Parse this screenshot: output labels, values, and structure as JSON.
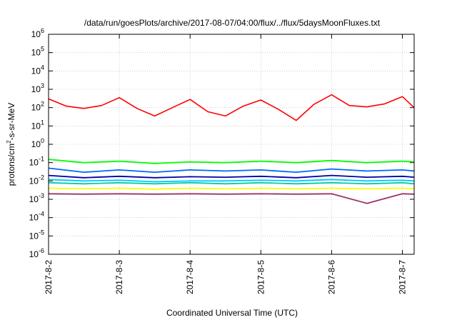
{
  "chart_data": {
    "type": "line",
    "title": "/data/run/goesPlots/archive/2017-08-07/04:00/flux/../flux/5daysMoonFluxes.txt",
    "xlabel": "Coordinated Universal Time (UTC)",
    "ylabel_main": "protons/cm",
    "ylabel_sup": "2",
    "ylabel_tail": "-s-sr-MeV",
    "yscale": "log",
    "ylim": [
      1e-06,
      1000000.0
    ],
    "xlim": [
      "2017-08-02 00:00",
      "2017-08-07 04:00"
    ],
    "grid": true,
    "ytick_labels": [
      {
        "exp": "-6"
      },
      {
        "exp": "-5"
      },
      {
        "exp": "-4"
      },
      {
        "exp": "-3"
      },
      {
        "exp": "-2"
      },
      {
        "exp": "-1"
      },
      {
        "exp": "0"
      },
      {
        "exp": "1"
      },
      {
        "exp": "2"
      },
      {
        "exp": "3"
      },
      {
        "exp": "4"
      },
      {
        "exp": "5"
      },
      {
        "exp": "6"
      }
    ],
    "ytick_base": "10",
    "xtick_labels": [
      "2017-8-2",
      "2017-8-3",
      "2017-8-4",
      "2017-8-5",
      "2017-8-6",
      "2017-8-7"
    ],
    "series": [
      {
        "color": "#ff0000",
        "x": [
          "2017-08-02 00:00",
          "2017-08-02 06:00",
          "2017-08-02 12:00",
          "2017-08-02 18:00",
          "2017-08-03 00:00",
          "2017-08-03 06:00",
          "2017-08-03 12:00",
          "2017-08-03 18:00",
          "2017-08-04 00:00",
          "2017-08-04 06:00",
          "2017-08-04 12:00",
          "2017-08-04 18:00",
          "2017-08-05 00:00",
          "2017-08-05 06:00",
          "2017-08-05 12:00",
          "2017-08-05 18:00",
          "2017-08-06 00:00",
          "2017-08-06 06:00",
          "2017-08-06 12:00",
          "2017-08-06 18:00",
          "2017-08-07 00:00",
          "2017-08-07 04:00"
        ],
        "values": [
          300,
          120,
          90,
          130,
          350,
          90,
          35,
          100,
          280,
          60,
          35,
          120,
          260,
          80,
          20,
          150,
          500,
          130,
          110,
          160,
          400,
          100
        ]
      },
      {
        "color": "#00ff00",
        "x": [
          "2017-08-02 00:00",
          "2017-08-02 12:00",
          "2017-08-03 00:00",
          "2017-08-03 12:00",
          "2017-08-04 00:00",
          "2017-08-04 12:00",
          "2017-08-05 00:00",
          "2017-08-05 12:00",
          "2017-08-06 00:00",
          "2017-08-06 12:00",
          "2017-08-07 00:00",
          "2017-08-07 04:00"
        ],
        "values": [
          0.15,
          0.1,
          0.12,
          0.09,
          0.11,
          0.1,
          0.12,
          0.1,
          0.13,
          0.1,
          0.12,
          0.11
        ]
      },
      {
        "color": "#00ccff",
        "x": [
          "2017-08-02 00:00",
          "2017-08-02 12:00",
          "2017-08-03 00:00",
          "2017-08-03 12:00",
          "2017-08-04 00:00",
          "2017-08-04 12:00",
          "2017-08-05 00:00",
          "2017-08-05 12:00",
          "2017-08-06 00:00",
          "2017-08-06 12:00",
          "2017-08-07 00:00",
          "2017-08-07 04:00"
        ],
        "values": [
          0.012,
          0.01,
          0.011,
          0.009,
          0.01,
          0.01,
          0.011,
          0.01,
          0.012,
          0.01,
          0.011,
          0.01
        ]
      },
      {
        "color": "#0066ff",
        "x": [
          "2017-08-02 00:00",
          "2017-08-02 12:00",
          "2017-08-03 00:00",
          "2017-08-03 12:00",
          "2017-08-04 00:00",
          "2017-08-04 12:00",
          "2017-08-05 00:00",
          "2017-08-05 12:00",
          "2017-08-06 00:00",
          "2017-08-06 12:00",
          "2017-08-07 00:00",
          "2017-08-07 04:00"
        ],
        "values": [
          0.05,
          0.03,
          0.04,
          0.03,
          0.04,
          0.035,
          0.04,
          0.03,
          0.045,
          0.035,
          0.04,
          0.035
        ]
      },
      {
        "color": "#0000aa",
        "x": [
          "2017-08-02 00:00",
          "2017-08-02 12:00",
          "2017-08-03 00:00",
          "2017-08-03 12:00",
          "2017-08-04 00:00",
          "2017-08-04 12:00",
          "2017-08-05 00:00",
          "2017-08-05 12:00",
          "2017-08-06 00:00",
          "2017-08-06 12:00",
          "2017-08-07 00:00",
          "2017-08-07 04:00"
        ],
        "values": [
          0.02,
          0.015,
          0.018,
          0.015,
          0.017,
          0.016,
          0.018,
          0.015,
          0.02,
          0.016,
          0.018,
          0.016
        ]
      },
      {
        "color": "#00ccaa",
        "x": [
          "2017-08-02 00:00",
          "2017-08-02 12:00",
          "2017-08-03 00:00",
          "2017-08-03 12:00",
          "2017-08-04 00:00",
          "2017-08-04 12:00",
          "2017-08-05 00:00",
          "2017-08-05 12:00",
          "2017-08-06 00:00",
          "2017-08-06 12:00",
          "2017-08-07 00:00",
          "2017-08-07 04:00"
        ],
        "values": [
          0.008,
          0.007,
          0.008,
          0.007,
          0.008,
          0.007,
          0.008,
          0.007,
          0.008,
          0.007,
          0.008,
          0.007
        ]
      },
      {
        "color": "#ffff00",
        "x": [
          "2017-08-02 00:00",
          "2017-08-02 12:00",
          "2017-08-03 00:00",
          "2017-08-03 12:00",
          "2017-08-04 00:00",
          "2017-08-04 12:00",
          "2017-08-05 00:00",
          "2017-08-05 12:00",
          "2017-08-06 00:00",
          "2017-08-06 12:00",
          "2017-08-07 00:00",
          "2017-08-07 04:00"
        ],
        "values": [
          0.004,
          0.0038,
          0.004,
          0.0036,
          0.004,
          0.0037,
          0.004,
          0.0037,
          0.004,
          0.0037,
          0.004,
          0.0038
        ]
      },
      {
        "color": "#993366",
        "x": [
          "2017-08-02 00:00",
          "2017-08-02 12:00",
          "2017-08-03 00:00",
          "2017-08-03 12:00",
          "2017-08-04 00:00",
          "2017-08-04 12:00",
          "2017-08-05 00:00",
          "2017-08-05 12:00",
          "2017-08-06 00:00",
          "2017-08-06 12:00",
          "2017-08-07 00:00",
          "2017-08-07 04:00"
        ],
        "values": [
          0.002,
          0.0019,
          0.002,
          0.0019,
          0.002,
          0.0019,
          0.002,
          0.0019,
          0.002,
          0.0006,
          0.002,
          0.0019
        ]
      }
    ]
  }
}
